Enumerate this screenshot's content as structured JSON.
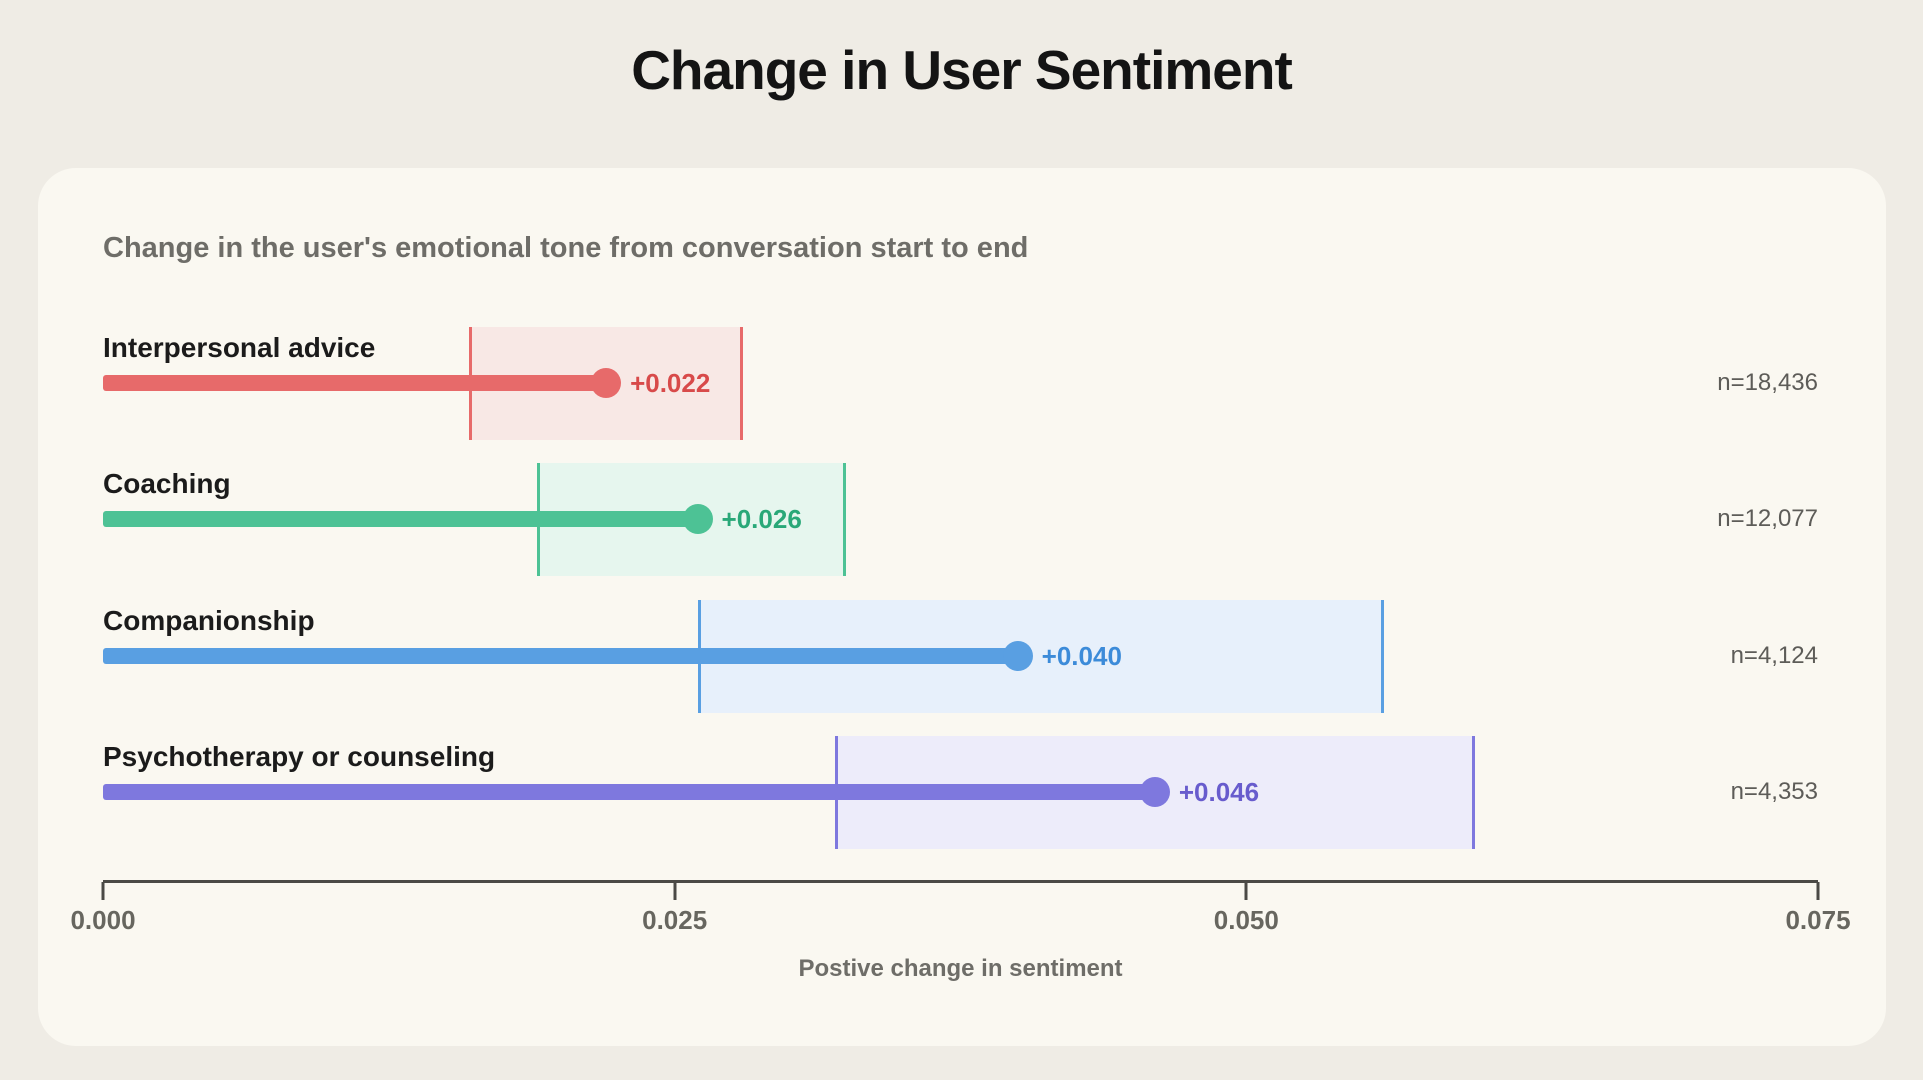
{
  "page": {
    "title": "Change in User Sentiment"
  },
  "card": {
    "subtitle": "Change in the user's emotional tone from conversation start to end"
  },
  "chart_data": {
    "type": "bar",
    "variant": "horizontal-lollipop-with-confidence-bands",
    "title": "Change in User Sentiment",
    "subtitle": "Change in the user's emotional tone from conversation start to end",
    "xlabel": "Postive change in sentiment",
    "xlim": [
      0,
      0.075
    ],
    "grid": false,
    "legend": false,
    "x_ticks": [
      {
        "value": 0.0,
        "label": "0.000"
      },
      {
        "value": 0.025,
        "label": "0.025"
      },
      {
        "value": 0.05,
        "label": "0.050"
      },
      {
        "value": 0.075,
        "label": "0.075"
      }
    ],
    "series": [
      {
        "label": "Interpersonal advice",
        "value": 0.022,
        "value_label": "+0.022",
        "ci": [
          0.016,
          0.028
        ],
        "n_label": "n=18,436",
        "color": "#e76a6a",
        "value_color": "#d84a4a",
        "band_fill": "#f8e8e5"
      },
      {
        "label": "Coaching",
        "value": 0.026,
        "value_label": "+0.026",
        "ci": [
          0.019,
          0.0325
        ],
        "n_label": "n=12,077",
        "color": "#4dc295",
        "value_color": "#29a878",
        "band_fill": "#e6f6ee"
      },
      {
        "label": "Companionship",
        "value": 0.04,
        "value_label": "+0.040",
        "ci": [
          0.026,
          0.056
        ],
        "n_label": "n=4,124",
        "color": "#599fe2",
        "value_color": "#3c8bd9",
        "band_fill": "#e7f0fb"
      },
      {
        "label": "Psychotherapy or counseling",
        "value": 0.046,
        "value_label": "+0.046",
        "ci": [
          0.032,
          0.06
        ],
        "n_label": "n=4,353",
        "color": "#7e78de",
        "value_color": "#685ccd",
        "band_fill": "#edecfa"
      }
    ]
  }
}
